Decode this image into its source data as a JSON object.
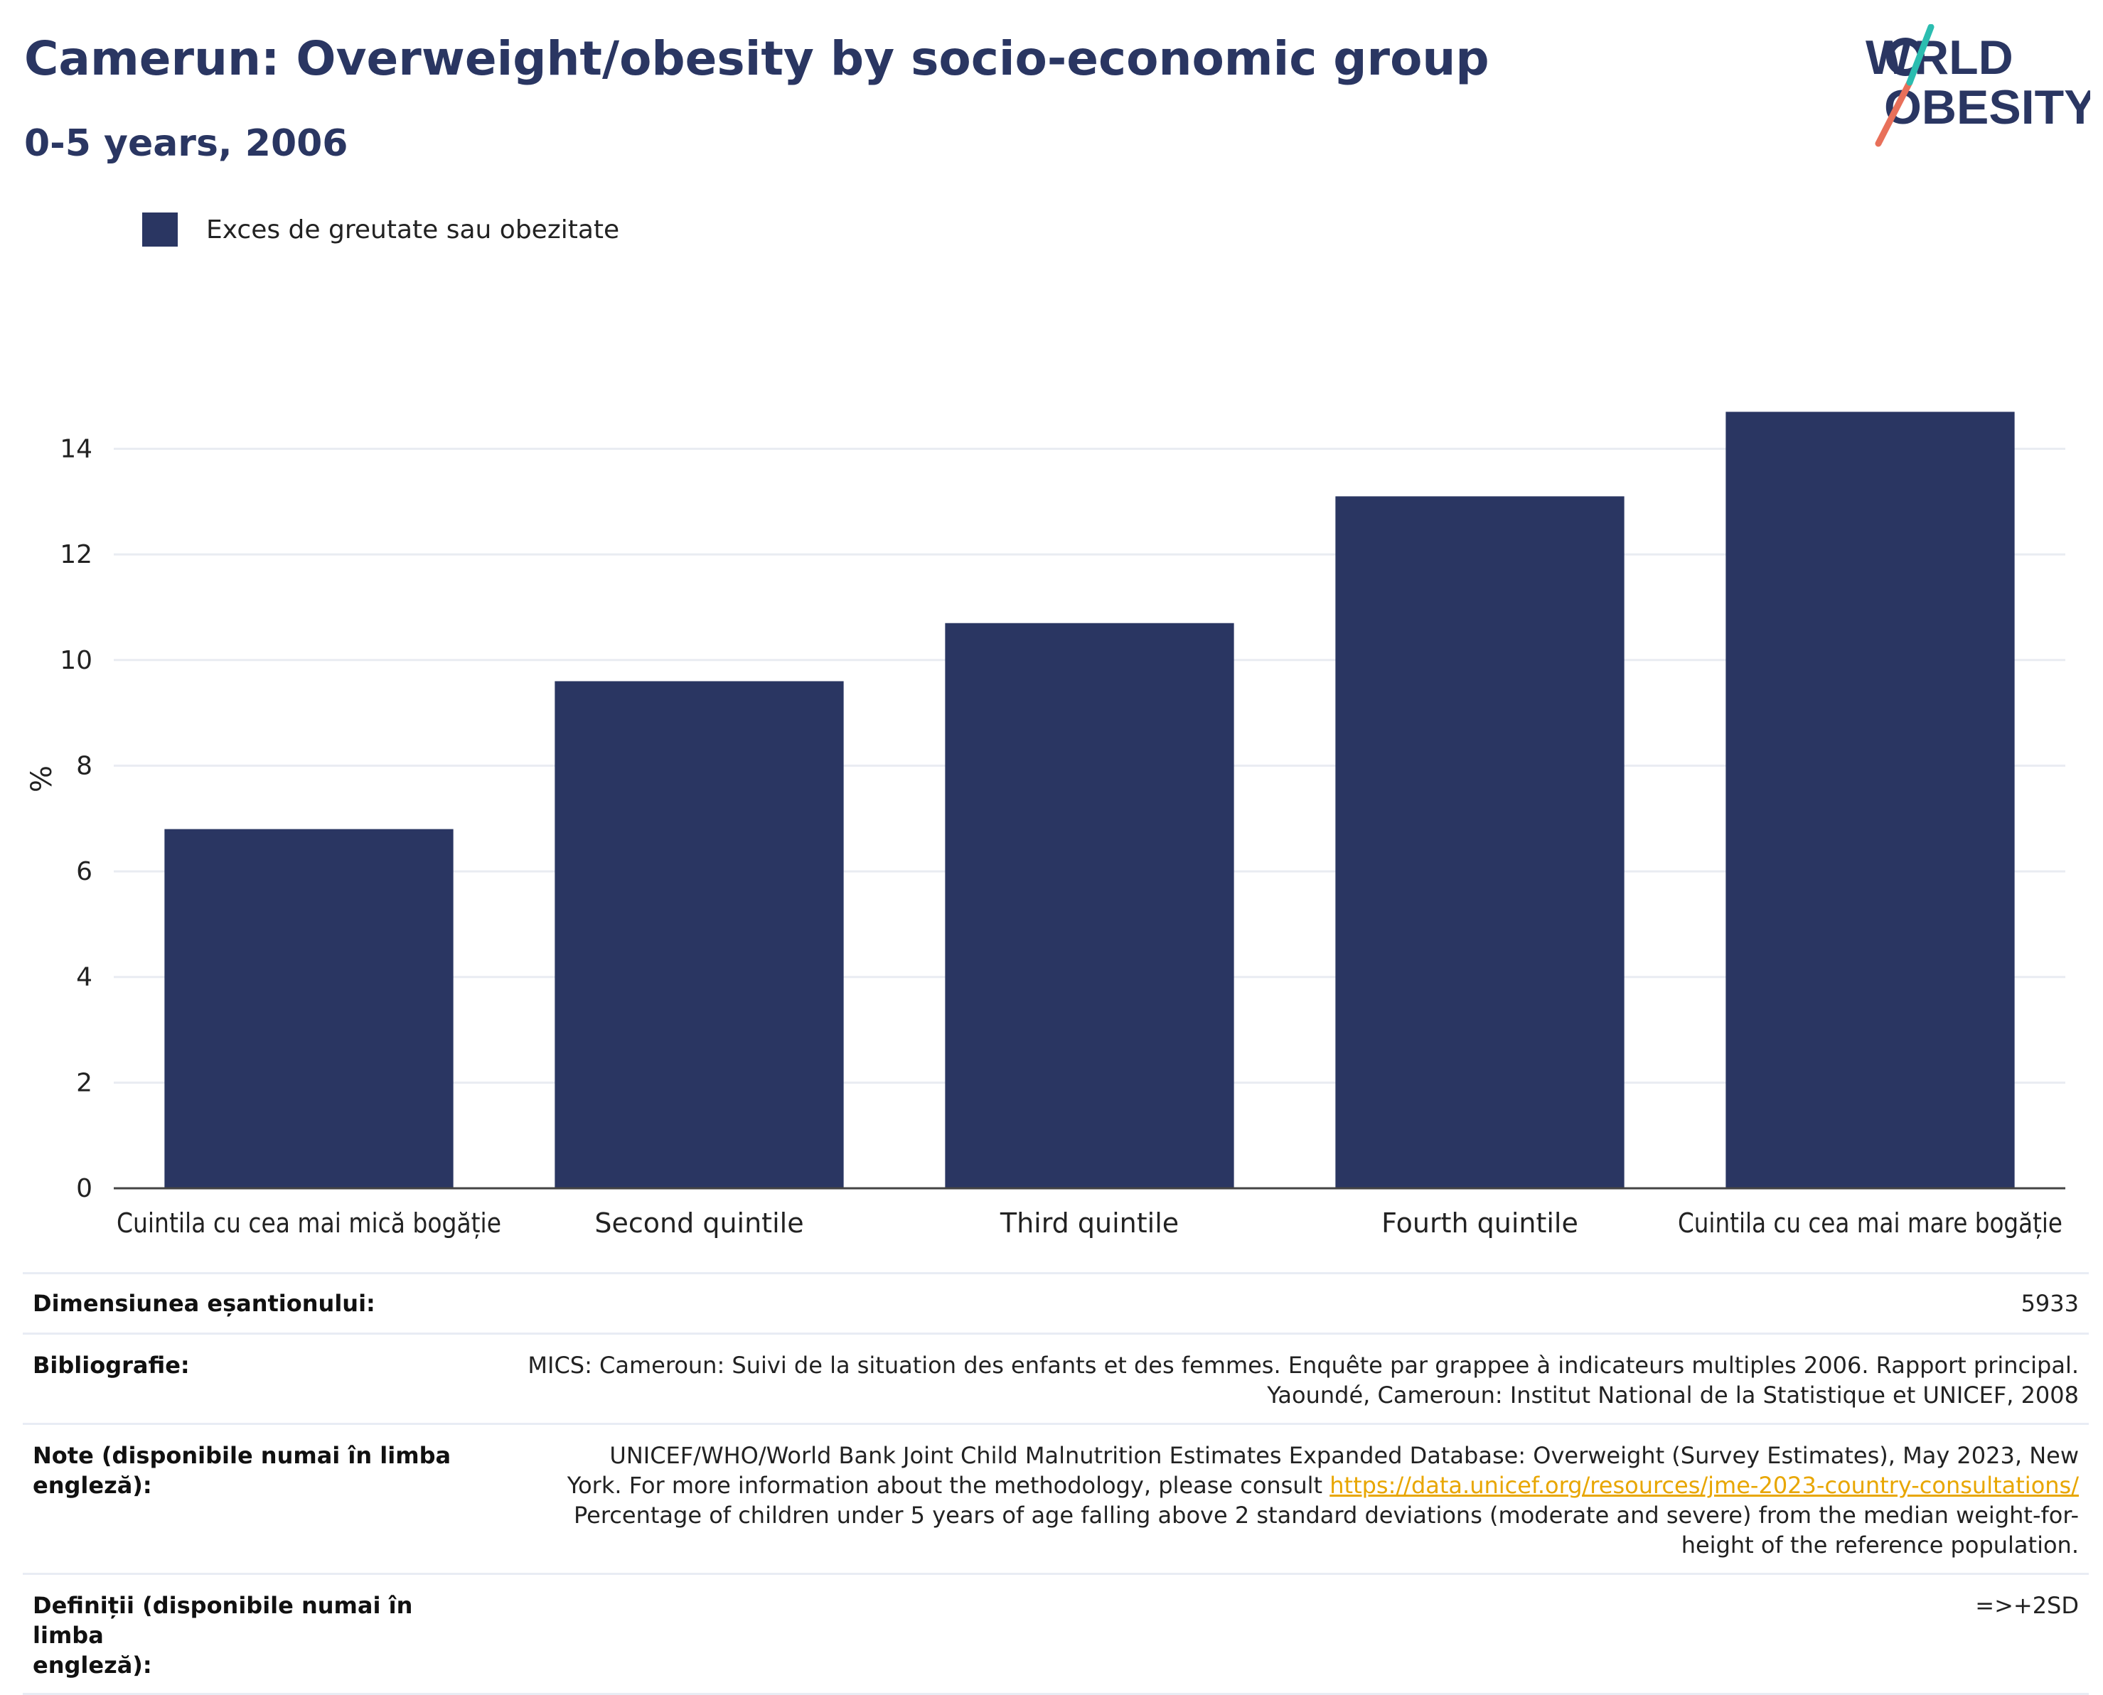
{
  "header": {
    "title": "Camerun: Overweight/obesity by socio-economic group",
    "subtitle": "0-5 years, 2006"
  },
  "logo": {
    "line1": "WORLD",
    "line2": "OBESITY"
  },
  "legend": {
    "label": "Exces de greutate sau obezitate",
    "color": "#2a3662"
  },
  "chart_data": {
    "type": "bar",
    "categories": [
      "Cuintila cu cea mai mică bogăție",
      "Second quintile",
      "Third quintile",
      "Fourth quintile",
      "Cuintila cu cea mai mare bogăție"
    ],
    "series": [
      {
        "name": "Exces de greutate sau obezitate",
        "values": [
          6.8,
          9.6,
          10.7,
          13.1,
          14.7
        ],
        "color": "#2a3662"
      }
    ],
    "ylabel": "%",
    "xlabel": "",
    "ylim": [
      0,
      15.5
    ],
    "yticks": [
      0,
      2,
      4,
      6,
      8,
      10,
      12,
      14
    ],
    "grid": true,
    "legend_position": "top-left"
  },
  "info": {
    "sample_size": {
      "label": "Dimensiunea eșantionului:",
      "value": "5933"
    },
    "bibliography": {
      "label": "Bibliografie:",
      "line1": "MICS: Cameroun: Suivi de la situation des enfants et des femmes. Enquête par grappee à indicateurs multiples 2006. Rapport principal.",
      "line2": "Yaoundé, Cameroun: Institut National de la Statistique et UNICEF, 2008"
    },
    "notes": {
      "label": "Note (disponibile numai în limba engleză):",
      "line1": "UNICEF/WHO/World Bank Joint Child Malnutrition Estimates Expanded Database: Overweight (Survey Estimates), May 2023, New",
      "line2_prefix": "York. For more information about the methodology, please consult",
      "link": "https://data.unicef.org/resources/jme-2023-country-consultations/",
      "line3": "Percentage of children under 5 years of age falling above 2 standard deviations (moderate and severe) from the median weight-for-",
      "line4": "height of the reference population."
    },
    "definitions": {
      "label_line1": "Definiții (disponibile numai în limba",
      "label_line2": "engleză):",
      "value": "=>+2SD"
    }
  }
}
